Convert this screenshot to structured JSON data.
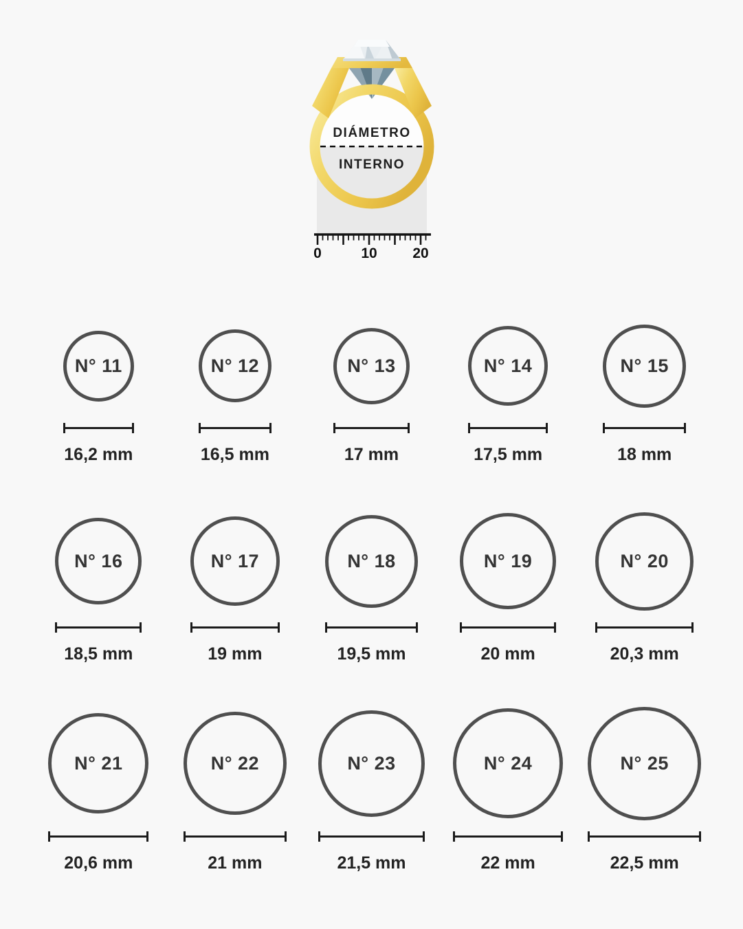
{
  "page": {
    "background": "#F8F8F8"
  },
  "ring": {
    "label_top": "DIÁMETRO",
    "label_bottom": "INTERNO",
    "ruler_labels": [
      "0",
      "10",
      "20"
    ],
    "colors": {
      "gold_light": "#F9ECA0",
      "gold": "#EFC94C",
      "gold_dark": "#DFB33A",
      "diamond_crown": "#E9EEF1",
      "diamond_pavilion": "#74909F",
      "shade_rect": "#E9E9E9",
      "inner_fill": "#FDFDFD",
      "line": "#141414"
    }
  },
  "styles": {
    "circle_border": "#4F4F4F",
    "text_dark": "#232323"
  },
  "sizes": [
    {
      "label": "N° 11",
      "mm_label": "16,2 mm",
      "mm": 16.2
    },
    {
      "label": "N° 12",
      "mm_label": "16,5 mm",
      "mm": 16.5
    },
    {
      "label": "N° 13",
      "mm_label": "17 mm",
      "mm": 17
    },
    {
      "label": "N° 14",
      "mm_label": "17,5 mm",
      "mm": 17.5
    },
    {
      "label": "N° 15",
      "mm_label": "18 mm",
      "mm": 18
    },
    {
      "label": "N° 16",
      "mm_label": "18,5 mm",
      "mm": 18.5
    },
    {
      "label": "N° 17",
      "mm_label": "19 mm",
      "mm": 19
    },
    {
      "label": "N° 18",
      "mm_label": "19,5 mm",
      "mm": 19.5
    },
    {
      "label": "N° 19",
      "mm_label": "20 mm",
      "mm": 20
    },
    {
      "label": "N° 20",
      "mm_label": "20,3 mm",
      "mm": 20.3
    },
    {
      "label": "N° 21",
      "mm_label": "20,6 mm",
      "mm": 20.6
    },
    {
      "label": "N° 22",
      "mm_label": "21 mm",
      "mm": 21
    },
    {
      "label": "N° 23",
      "mm_label": "21,5 mm",
      "mm": 21.5
    },
    {
      "label": "N° 24",
      "mm_label": "22 mm",
      "mm": 22
    },
    {
      "label": "N° 25",
      "mm_label": "22,5 mm",
      "mm": 22.5
    }
  ]
}
